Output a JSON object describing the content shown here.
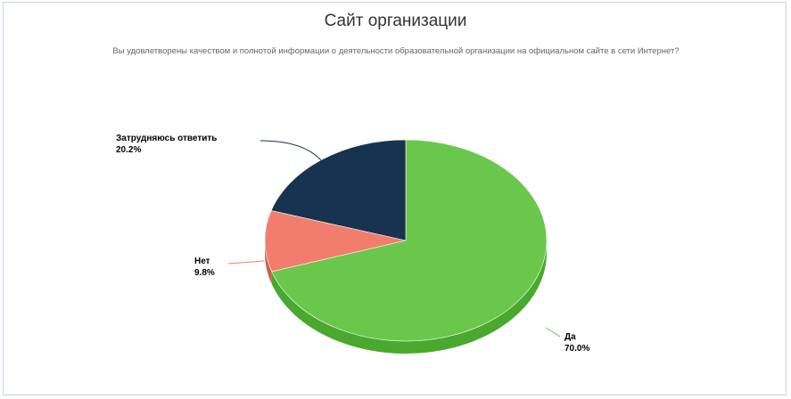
{
  "chart_data": {
    "type": "pie",
    "title": "Сайт организации",
    "subtitle": "Вы удовлетворены качеством и полнотой информации о деятельности образовательной организации на официальном сайте в сети Интернет?",
    "slices": [
      {
        "label": "Да",
        "value": 70.0,
        "value_label": "70.0%",
        "color": "#6ac74c",
        "side_color": "#4aa82f"
      },
      {
        "label": "Нет",
        "value": 9.8,
        "value_label": "9.8%",
        "color": "#f27d6e",
        "side_color": "#c95e51"
      },
      {
        "label": "Затрудняюсь ответить",
        "value": 20.2,
        "value_label": "20.2%",
        "color": "#17334f",
        "side_color": "#0d2136"
      }
    ]
  }
}
